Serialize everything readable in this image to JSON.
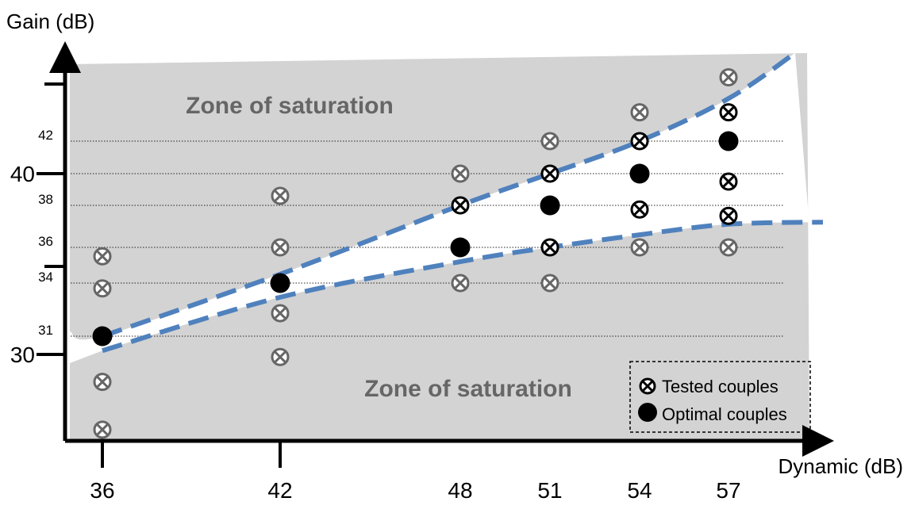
{
  "chart_data": {
    "type": "scatter",
    "xlabel": "Dynamic (dB)",
    "ylabel": "Gain (dB)",
    "xticks": [
      "36",
      "42",
      "48",
      "51",
      "54",
      "57"
    ],
    "yticks_major": [
      "30",
      "40"
    ],
    "yticks_minor": [
      "31",
      "34",
      "36",
      "38",
      "42"
    ],
    "zone_labels": [
      "Zone of saturation",
      "Zone of saturation"
    ],
    "legend": [
      "Tested couples",
      "Optimal couples"
    ],
    "series": [
      {
        "name": "Tested couples",
        "points": [
          {
            "x": 36,
            "y": 35.5
          },
          {
            "x": 36,
            "y": 33.7
          },
          {
            "x": 36,
            "y": 28.8
          },
          {
            "x": 36,
            "y": 26.5
          },
          {
            "x": 42,
            "y": 38.6
          },
          {
            "x": 42,
            "y": 36.0
          },
          {
            "x": 42,
            "y": 32.3
          },
          {
            "x": 42,
            "y": 30.0
          },
          {
            "x": 48,
            "y": 40.0
          },
          {
            "x": 48,
            "y": 38.0
          },
          {
            "x": 48,
            "y": 34.0
          },
          {
            "x": 51,
            "y": 42.0
          },
          {
            "x": 51,
            "y": 40.0
          },
          {
            "x": 51,
            "y": 36.0
          },
          {
            "x": 51,
            "y": 34.0
          },
          {
            "x": 54,
            "y": 43.9
          },
          {
            "x": 54,
            "y": 42.0
          },
          {
            "x": 54,
            "y": 37.8
          },
          {
            "x": 54,
            "y": 36.0
          },
          {
            "x": 57,
            "y": 46.2
          },
          {
            "x": 57,
            "y": 43.9
          },
          {
            "x": 57,
            "y": 39.5
          },
          {
            "x": 57,
            "y": 37.5
          },
          {
            "x": 57,
            "y": 36.0
          }
        ]
      },
      {
        "name": "Optimal couples",
        "points": [
          {
            "x": 36,
            "y": 31.0
          },
          {
            "x": 42,
            "y": 34.0
          },
          {
            "x": 48,
            "y": 36.0
          },
          {
            "x": 51,
            "y": 38.0
          },
          {
            "x": 54,
            "y": 40.0
          },
          {
            "x": 57,
            "y": 42.0
          }
        ]
      }
    ],
    "boundaries": [
      {
        "name": "upper",
        "points": [
          [
            36,
            31.0
          ],
          [
            42,
            34.5
          ],
          [
            48,
            38.0
          ],
          [
            51,
            40.0
          ],
          [
            54,
            42.0
          ],
          [
            57,
            44.8
          ],
          [
            59.4,
            47.8
          ]
        ]
      },
      {
        "name": "lower",
        "points": [
          [
            36,
            30.3
          ],
          [
            42,
            33.2
          ],
          [
            48,
            35.2
          ],
          [
            51,
            36.0
          ],
          [
            54,
            36.6
          ],
          [
            57,
            37.1
          ],
          [
            60.4,
            37.2
          ]
        ]
      }
    ],
    "gridlines_y": [
      31,
      34,
      36,
      38,
      40,
      42
    ],
    "colors": {
      "zone": "#d3d3d3",
      "zone_text": "#666666",
      "boundary": "#4f81bd",
      "tested_grey": "#666666",
      "tested_black": "#000000",
      "optimal": "#000000"
    }
  }
}
